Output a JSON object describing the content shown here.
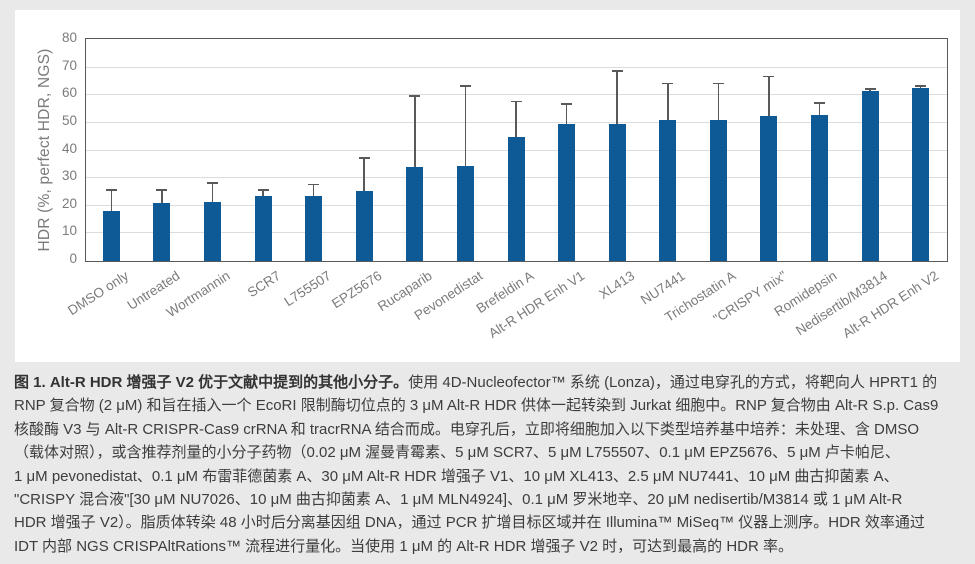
{
  "chart_data": {
    "type": "bar",
    "title": "",
    "ylabel": "HDR (%, perfect HDR, NGS)",
    "xlabel": "",
    "ylim": [
      0,
      80
    ],
    "yticks": [
      0,
      10,
      20,
      30,
      40,
      50,
      60,
      70,
      80
    ],
    "grid": "horizontal",
    "legend": "none",
    "error_bars": "upper only",
    "categories": [
      "DMSO only",
      "Untreated",
      "Wortmannin",
      "SCR7",
      "L755507",
      "EPZ5676",
      "Rucaparib",
      "Pevonedistat",
      "Brefeldin A",
      "Alt-R HDR Enh V1",
      "XL413",
      "NU7441",
      "Trichostatin A",
      "\"CRISPY mix\"",
      "Romidepsin",
      "Nedisertib/M3814",
      "Alt-R HDR Enh V2"
    ],
    "values": [
      18,
      21,
      21.5,
      23.5,
      23.5,
      25.5,
      34,
      34.5,
      45,
      49.5,
      49.5,
      51,
      51,
      52.5,
      53,
      61.5,
      62.5
    ],
    "error_plus": [
      7.5,
      4.5,
      6.5,
      2,
      4,
      11.5,
      25.5,
      28.5,
      12.5,
      7,
      19,
      13,
      13,
      14,
      4,
      0.5,
      0.5
    ],
    "bar_color": "#0e5a96",
    "error_color": "#58595b"
  },
  "colors": {
    "page_bg": "#e9e9e9",
    "panel_bg": "#ffffff",
    "grid": "#dcdcdc",
    "axis": "#58595b",
    "tick_text": "#7b7b7b",
    "caption_text": "#3d3d3d"
  },
  "caption": {
    "lead_bold": "图 1. Alt-R HDR 增强子 V2 优于文献中提到的其他小分子。",
    "lines": [
      "使用 4D-Nucleofector™ 系统 (Lonza)，通过电穿孔的方式，将靶向人 HPRT1 的",
      "RNP 复合物 (2 μM) 和旨在插入一个 EcoRI 限制酶切位点的 3 μM Alt-R HDR 供体一起转染到 Jurkat 细胞中。RNP 复合物由 Alt-R S.p. Cas9",
      "核酸酶 V3 与 Alt-R CRISPR-Cas9 crRNA 和 tracrRNA 结合而成。电穿孔后，立即将细胞加入以下类型培养基中培养：未处理、含 DMSO",
      "（载体对照），或含推荐剂量的小分子药物（0.02 μM 渥曼青霉素、5 μM SCR7、5 μM L755507、0.1 μM EPZ5676、5 μM 卢卡帕尼、",
      "1 μM pevonedistat、0.1 μM 布雷菲德菌素 A、30 μM Alt-R HDR 增强子 V1、10 μM XL413、2.5 μM NU7441、10 μM 曲古抑菌素 A、",
      "\"CRISPY 混合液\"[30 μM NU7026、10 μM 曲古抑菌素 A、1 μM MLN4924]、0.1 μM 罗米地辛、20 μM nedisertib/M3814 或 1 μM Alt-R",
      "HDR 增强子 V2）。脂质体转染 48 小时后分离基因组 DNA，通过 PCR 扩增目标区域并在 Illumina™ MiSeq™ 仪器上测序。HDR 效率通过",
      "IDT 内部 NGS CRISPAltRations™ 流程进行量化。当使用 1 μM 的 Alt-R HDR 增强子 V2 时，可达到最高的 HDR 率。"
    ]
  }
}
